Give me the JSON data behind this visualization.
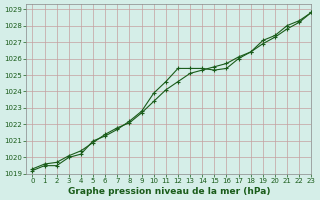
{
  "xlabel": "Graphe pression niveau de la mer (hPa)",
  "xlim": [
    -0.5,
    23
  ],
  "ylim": [
    1019,
    1029.3
  ],
  "yticks": [
    1019,
    1020,
    1021,
    1022,
    1023,
    1024,
    1025,
    1026,
    1027,
    1028,
    1029
  ],
  "xticks": [
    0,
    1,
    2,
    3,
    4,
    5,
    6,
    7,
    8,
    9,
    10,
    11,
    12,
    13,
    14,
    15,
    16,
    17,
    18,
    19,
    20,
    21,
    22,
    23
  ],
  "bg_color": "#d5eee8",
  "grid_color": "#c4a0a0",
  "line_color": "#1a5c1a",
  "line1_x": [
    0,
    1,
    2,
    3,
    4,
    5,
    6,
    7,
    8,
    9,
    10,
    11,
    12,
    13,
    14,
    15,
    16,
    17,
    18,
    19,
    20,
    21,
    22,
    23
  ],
  "line1_y": [
    1019.2,
    1019.5,
    1019.5,
    1020.0,
    1020.2,
    1021.0,
    1021.3,
    1021.7,
    1022.2,
    1022.8,
    1023.9,
    1024.6,
    1025.4,
    1025.4,
    1025.4,
    1025.3,
    1025.4,
    1026.0,
    1026.4,
    1027.1,
    1027.4,
    1028.0,
    1028.3,
    1028.8
  ],
  "line2_x": [
    0,
    1,
    2,
    3,
    4,
    5,
    6,
    7,
    8,
    9,
    10,
    11,
    12,
    13,
    14,
    15,
    16,
    17,
    18,
    19,
    20,
    21,
    22,
    23
  ],
  "line2_y": [
    1019.3,
    1019.6,
    1019.7,
    1020.1,
    1020.4,
    1020.9,
    1021.4,
    1021.8,
    1022.1,
    1022.7,
    1023.4,
    1024.1,
    1024.6,
    1025.1,
    1025.3,
    1025.5,
    1025.7,
    1026.1,
    1026.4,
    1026.9,
    1027.3,
    1027.8,
    1028.2,
    1028.8
  ]
}
